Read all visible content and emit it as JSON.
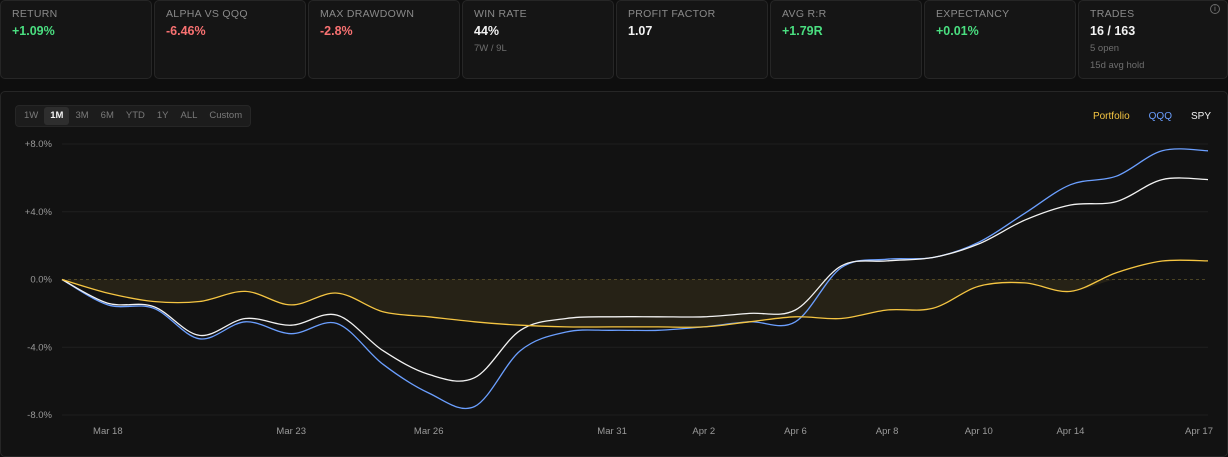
{
  "stats": [
    {
      "key": "return",
      "label": "RETURN",
      "value": "+1.09%",
      "tone": "pos",
      "subs": []
    },
    {
      "key": "alpha",
      "label": "ALPHA VS QQQ",
      "value": "-6.46%",
      "tone": "neg",
      "subs": []
    },
    {
      "key": "max-drawdown",
      "label": "MAX DRAWDOWN",
      "value": "-2.8%",
      "tone": "neg",
      "subs": []
    },
    {
      "key": "win-rate",
      "label": "WIN RATE",
      "value": "44%",
      "tone": "neu",
      "subs": [
        "7W / 9L"
      ]
    },
    {
      "key": "profit-factor",
      "label": "PROFIT FACTOR",
      "value": "1.07",
      "tone": "neu",
      "subs": []
    },
    {
      "key": "avg-rr",
      "label": "AVG R:R",
      "value": "+1.79R",
      "tone": "pos",
      "subs": []
    },
    {
      "key": "expectancy",
      "label": "EXPECTANCY",
      "value": "+0.01%",
      "tone": "pos",
      "subs": []
    },
    {
      "key": "trades",
      "label": "TRADES",
      "value": "16 / 163",
      "tone": "neu",
      "subs": [
        "5 open",
        "15d avg hold"
      ]
    }
  ],
  "info_icon": {
    "icon": "info-icon",
    "glyph": "i"
  },
  "range_tabs": {
    "items": [
      "1W",
      "1M",
      "3M",
      "6M",
      "YTD",
      "1Y",
      "ALL",
      "Custom"
    ],
    "active": "1M"
  },
  "chart_data": {
    "type": "line",
    "title": "",
    "xlabel": "",
    "ylabel": "",
    "ylim": [
      -8.0,
      8.0
    ],
    "ytick_labels": [
      "+8.0%",
      "+4.0%",
      "0.0%",
      "-4.0%",
      "-8.0%"
    ],
    "ytick_values": [
      8,
      4,
      0,
      -4,
      -8
    ],
    "zero_line": "dashed",
    "grid": true,
    "legend_position": "top-right",
    "x": [
      "Mar 17",
      "Mar 18",
      "Mar 19",
      "Mar 20",
      "Mar 21",
      "Mar 23",
      "Mar 24",
      "Mar 25",
      "Mar 26",
      "Mar 27",
      "Mar 28",
      "Mar 30",
      "Mar 31",
      "Apr 1",
      "Apr 2",
      "Apr 3",
      "Apr 6",
      "Apr 7",
      "Apr 8",
      "Apr 9",
      "Apr 10",
      "Apr 13",
      "Apr 14",
      "Apr 15",
      "Apr 16",
      "Apr 17"
    ],
    "xtick_labels": [
      "Mar 18",
      "Mar 23",
      "Mar 26",
      "Mar 31",
      "Apr 2",
      "Apr 6",
      "Apr 8",
      "Apr 10",
      "Apr 14",
      "Apr 17"
    ],
    "series": [
      {
        "name": "Portfolio",
        "color": "#f5c542",
        "fill": "drawdown",
        "values": [
          0.0,
          -0.8,
          -1.3,
          -1.3,
          -0.7,
          -1.5,
          -0.8,
          -1.9,
          -2.2,
          -2.5,
          -2.7,
          -2.8,
          -2.8,
          -2.8,
          -2.8,
          -2.5,
          -2.2,
          -2.3,
          -1.8,
          -1.7,
          -0.4,
          -0.2,
          -0.7,
          0.4,
          1.09,
          1.1
        ]
      },
      {
        "name": "QQQ",
        "color": "#6b9fff",
        "values": [
          0.0,
          -1.5,
          -1.7,
          -3.5,
          -2.5,
          -3.2,
          -2.6,
          -5.0,
          -6.7,
          -7.5,
          -4.2,
          -3.1,
          -3.0,
          -3.0,
          -2.8,
          -2.5,
          -2.5,
          0.7,
          1.2,
          1.3,
          2.2,
          3.9,
          5.6,
          6.1,
          7.6,
          7.6
        ]
      },
      {
        "name": "SPY",
        "color": "#f2f2f2",
        "values": [
          0.0,
          -1.4,
          -1.6,
          -3.3,
          -2.3,
          -2.7,
          -2.1,
          -4.2,
          -5.6,
          -5.8,
          -3.0,
          -2.3,
          -2.2,
          -2.2,
          -2.2,
          -2.0,
          -1.8,
          0.8,
          1.1,
          1.3,
          2.1,
          3.5,
          4.4,
          4.6,
          5.9,
          5.9
        ]
      }
    ]
  }
}
